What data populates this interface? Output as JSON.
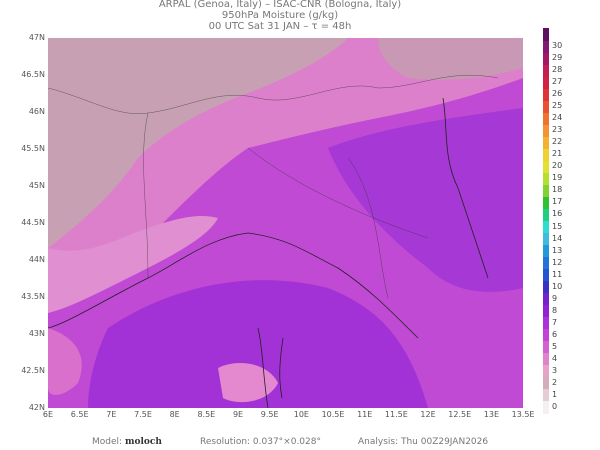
{
  "header": {
    "line1": "ARPAL (Genoa, Italy)  –  ISAC-CNR (Bologna, Italy)",
    "line2": "950hPa Moisture (g/kg)",
    "line3": "00 UTC Sat 31 JAN  –  τ = 48h"
  },
  "lat_labels": [
    "47N",
    "46.5N",
    "46N",
    "45.5N",
    "45N",
    "44.5N",
    "44N",
    "43.5N",
    "43N",
    "42.5N",
    "42N"
  ],
  "lon_labels": [
    "6E",
    "6.5E",
    "7E",
    "7.5E",
    "8E",
    "8.5E",
    "9E",
    "9.5E",
    "10E",
    "10.5E",
    "11E",
    "11.5E",
    "12E",
    "12.5E",
    "13E",
    "13.5E"
  ],
  "colorbar": {
    "labels": [
      "0",
      "1",
      "2",
      "3",
      "4",
      "5",
      "6",
      "7",
      "8",
      "9",
      "10",
      "11",
      "12",
      "13",
      "14",
      "15",
      "16",
      "17",
      "18",
      "19",
      "20",
      "21",
      "22",
      "23",
      "24",
      "25",
      "26",
      "27",
      "28",
      "29",
      "30"
    ],
    "colors": [
      "#f4f0f2",
      "#e6ccd6",
      "#d2aebb",
      "#e8a2c8",
      "#e082cc",
      "#d262d2",
      "#c244d4",
      "#ab32d8",
      "#9222d2",
      "#7422cc",
      "#3a32c4",
      "#2454d0",
      "#2274d8",
      "#229ad8",
      "#40badf",
      "#2edcd0",
      "#20ce80",
      "#30c034",
      "#84d232",
      "#b4e032",
      "#e2e032",
      "#f2d032",
      "#f2b232",
      "#f29232",
      "#f07232",
      "#e85232",
      "#e03434",
      "#d22244",
      "#c22054",
      "#a21864",
      "#821872",
      "#5e1060"
    ]
  },
  "footer": {
    "model_label": "Model:",
    "model": "moloch",
    "resolution": "Resolution:  0.037°×0.028°",
    "analysis": "Analysis:  Thu  00Z29JAN2026"
  }
}
